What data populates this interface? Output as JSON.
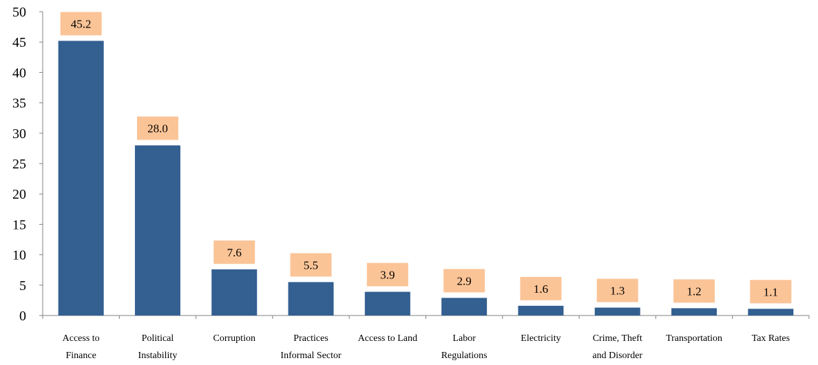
{
  "chart_data": {
    "type": "bar",
    "categories": [
      [
        "Access to",
        "Finance"
      ],
      [
        "Political",
        "Instability"
      ],
      [
        "Corruption"
      ],
      [
        "Practices",
        "Informal Sector"
      ],
      [
        "Access to Land"
      ],
      [
        "Labor",
        "Regulations"
      ],
      [
        "Electricity"
      ],
      [
        "Crime, Theft",
        "and Disorder"
      ],
      [
        "Transportation"
      ],
      [
        "Tax Rates"
      ]
    ],
    "values": [
      45.2,
      28.0,
      7.6,
      5.5,
      3.9,
      2.9,
      1.6,
      1.3,
      1.2,
      1.1
    ],
    "data_labels": [
      "45.2",
      "28.0",
      "7.6",
      "5.5",
      "3.9",
      "2.9",
      "1.6",
      "1.3",
      "1.2",
      "1.1"
    ],
    "y_ticks": [
      "0",
      "5",
      "10",
      "15",
      "20",
      "25",
      "30",
      "35",
      "40",
      "45",
      "50"
    ],
    "ylim": [
      0,
      50
    ],
    "title": "",
    "xlabel": "",
    "ylabel": "",
    "grid": false,
    "legend": "none",
    "colors": {
      "bar": "#335F91",
      "label_box": "#FBC497",
      "axis": "#808080"
    }
  }
}
